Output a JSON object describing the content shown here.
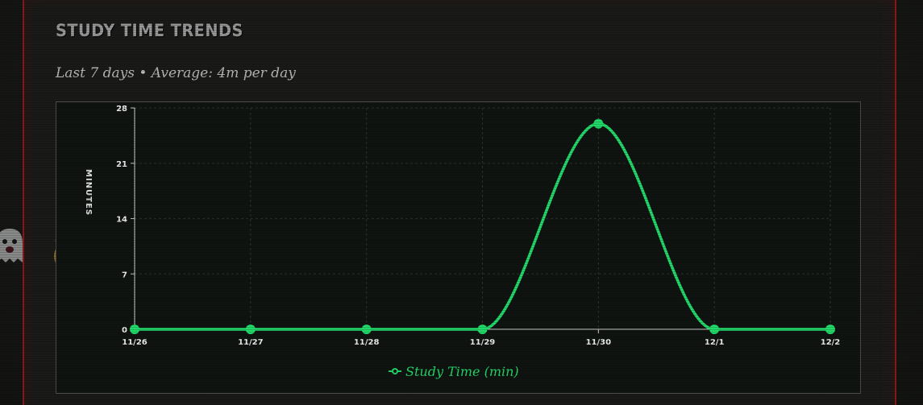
{
  "header": {
    "title": "STUDY TIME TRENDS",
    "subtitle": "Last 7 days • Average: 4m per day"
  },
  "colors": {
    "line": "#22d96a",
    "accent_border": "#8a1a1a",
    "grid": "#2c332d",
    "axis": "#d8d8d8"
  },
  "decor": {
    "sticker_icons": [
      "ghost-icon",
      "halo-smiley-icon"
    ]
  },
  "chart_data": {
    "type": "line",
    "categories": [
      "11/26",
      "11/27",
      "11/28",
      "11/29",
      "11/30",
      "12/1",
      "12/2"
    ],
    "series": [
      {
        "name": "Study Time (min)",
        "values": [
          0,
          0,
          0,
          0,
          26,
          0,
          0
        ]
      }
    ],
    "ylabel": "MINUTES",
    "xlabel": "",
    "ylim": [
      0,
      28
    ],
    "yticks": [
      0,
      7,
      14,
      21,
      28
    ],
    "grid": true,
    "legend_position": "bottom-center",
    "smooth": true
  }
}
